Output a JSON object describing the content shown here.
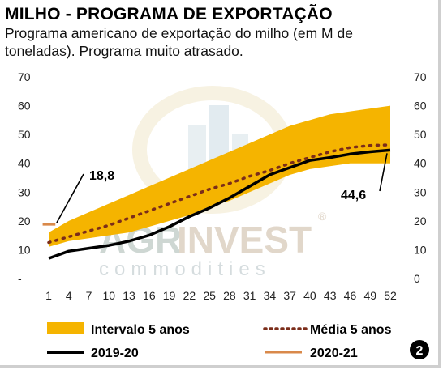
{
  "title": "MILHO - PROGRAMA DE EXPORTAÇÃO",
  "subtitle": "Programa americano de exportação do milho (em M de toneladas). Programa muito atrasado.",
  "watermark": {
    "brand_a": "AGR",
    "brand_b": "INVEST",
    "sub": "commodities",
    "reg": "®"
  },
  "page_number": "2",
  "colors": {
    "band": "#f5b400",
    "media": "#7b2d1a",
    "line_2019": "#000000",
    "line_2020": "#d9894a"
  },
  "annotations": {
    "start": "18,8",
    "end": "44,6"
  },
  "chart_data": {
    "type": "line",
    "title": "MILHO - PROGRAMA DE EXPORTAÇÃO",
    "xlabel": "",
    "ylabel": "",
    "x_ticks": [
      "1",
      "4",
      "7",
      "10",
      "13",
      "16",
      "19",
      "22",
      "25",
      "28",
      "31",
      "34",
      "37",
      "40",
      "43",
      "46",
      "49",
      "52"
    ],
    "y_ticks_left": [
      "-",
      "10",
      "20",
      "30",
      "40",
      "50",
      "60",
      "70"
    ],
    "y_ticks_right": [
      "0",
      "10",
      "20",
      "30",
      "40",
      "50",
      "60",
      "70"
    ],
    "xlim": [
      1,
      52
    ],
    "ylim": [
      0,
      70
    ],
    "legend_position": "bottom",
    "grid": false,
    "series": [
      {
        "name": "Intervalo 5 anos",
        "style": "band",
        "x": [
          1,
          4,
          7,
          10,
          13,
          16,
          19,
          22,
          25,
          28,
          31,
          34,
          37,
          40,
          43,
          46,
          49,
          52
        ],
        "lower": [
          11,
          13,
          14,
          15,
          16,
          18,
          20,
          22,
          25,
          27,
          30,
          33,
          36,
          38,
          39,
          40,
          40,
          40
        ],
        "upper": [
          16,
          20,
          23,
          26,
          29,
          32,
          35,
          38,
          41,
          44,
          47,
          50,
          53,
          55,
          57,
          58,
          59,
          60
        ]
      },
      {
        "name": "Média 5 anos",
        "style": "dotted",
        "x": [
          1,
          4,
          7,
          10,
          13,
          16,
          19,
          22,
          25,
          28,
          31,
          34,
          37,
          40,
          43,
          46,
          49,
          52
        ],
        "values": [
          12.5,
          14.5,
          16.5,
          18.5,
          21,
          23.5,
          26,
          28.5,
          31,
          33,
          35.5,
          37.5,
          40,
          42,
          44,
          45.5,
          46.2,
          46.4
        ]
      },
      {
        "name": "2019-20",
        "style": "solid",
        "x": [
          1,
          4,
          7,
          10,
          13,
          16,
          19,
          22,
          25,
          28,
          31,
          34,
          37,
          40,
          43,
          46,
          49,
          52
        ],
        "values": [
          7,
          9.5,
          10.5,
          11.5,
          13,
          15,
          18,
          21.5,
          24.5,
          28,
          32,
          36,
          38.5,
          41,
          42,
          43.2,
          44,
          44.6
        ]
      },
      {
        "name": "2020-21",
        "style": "solid",
        "x": [
          1,
          2
        ],
        "values": [
          18.8,
          18.8
        ]
      }
    ],
    "annotations": [
      {
        "text": "18,8",
        "x": 1,
        "y": 18.8
      },
      {
        "text": "44,6",
        "x": 52,
        "y": 44.6
      }
    ]
  }
}
